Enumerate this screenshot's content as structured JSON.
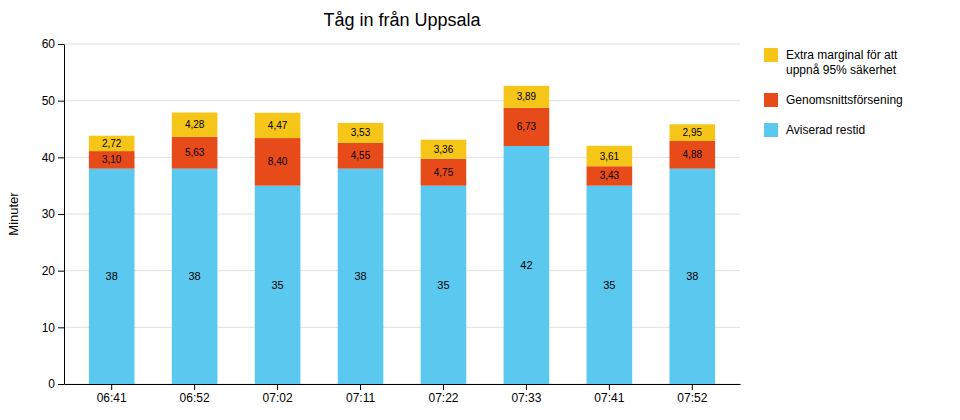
{
  "chart_data": {
    "type": "bar",
    "stacked": true,
    "title": "Tåg in från Uppsala",
    "y_label": "Minuter",
    "categories": [
      "06:41",
      "06:52",
      "07:02",
      "07:11",
      "07:22",
      "07:33",
      "07:41",
      "07:52"
    ],
    "series": [
      {
        "name": "Aviserad restid",
        "color": "#5BC8F0",
        "values": [
          38,
          38,
          35,
          38,
          35,
          42,
          35,
          38
        ]
      },
      {
        "name": "Genomsnittsförsening",
        "color": "#E84B1A",
        "values": [
          3.1,
          5.63,
          8.4,
          4.55,
          4.75,
          6.73,
          3.43,
          4.88
        ],
        "value_labels": [
          "3,10",
          "5,63",
          "8,40",
          "4,55",
          "4,75",
          "6,73",
          "3,43",
          "4,88"
        ]
      },
      {
        "name": "Extra marginal för att\nuppnå 95% säkerhet",
        "color": "#F5C518",
        "values": [
          2.72,
          4.28,
          4.47,
          3.53,
          3.36,
          3.89,
          3.61,
          2.95
        ],
        "value_labels": [
          "2,72",
          "4,28",
          "4,47",
          "3,53",
          "3,36",
          "3,89",
          "3,61",
          "2,95"
        ]
      }
    ],
    "ylim": [
      0,
      60
    ],
    "yticks": [
      0,
      10,
      20,
      30,
      40,
      50,
      60
    ],
    "grid": true,
    "legend": "upper right",
    "data_labels": true
  }
}
